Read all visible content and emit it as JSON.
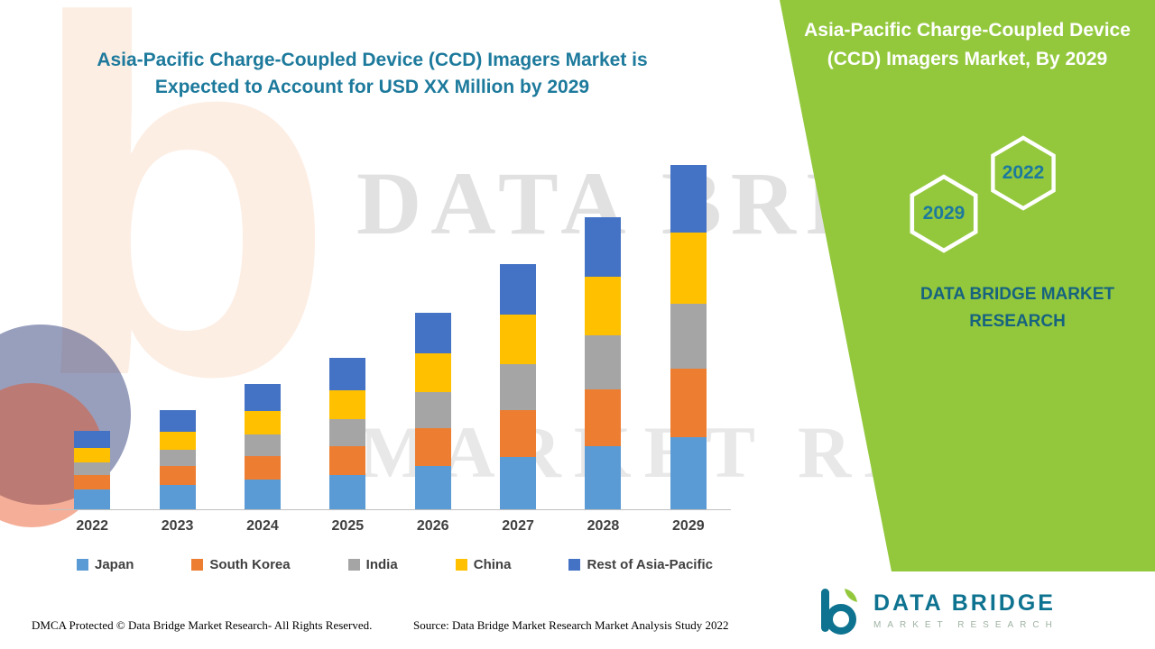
{
  "titles": {
    "main": "Asia-Pacific Charge-Coupled Device (CCD) Imagers Market is Expected to Account for USD XX Million by 2029",
    "panel": "Asia-Pacific Charge-Coupled Device (CCD) Imagers Market, By 2029"
  },
  "panel": {
    "hexagon_left": "2029",
    "hexagon_right": "2022",
    "brand_caption": "DATA BRIDGE MARKET RESEARCH"
  },
  "watermark": {
    "line1": "DATA BRIDGE",
    "line2": "MARKET RESEARCH",
    "letter_b": "b"
  },
  "logo": {
    "brand": "DATA BRIDGE",
    "subtitle": "MARKET RESEARCH"
  },
  "footer": {
    "dmca": "DMCA Protected © Data Bridge Market Research- All Rights Reserved.",
    "source": "Source: Data Bridge Market Research Market Analysis Study 2022"
  },
  "colors": {
    "green": "#93C83D",
    "teal": "#1D7A9C"
  },
  "chart_data": {
    "type": "bar",
    "stacked": true,
    "title": "Asia-Pacific Charge-Coupled Device (CCD) Imagers Market is Expected to Account for USD XX Million by 2029",
    "categories": [
      "2022",
      "2023",
      "2024",
      "2025",
      "2026",
      "2027",
      "2028",
      "2029"
    ],
    "series": [
      {
        "name": "Japan",
        "color": "#5B9BD5",
        "values": [
          22,
          27,
          33,
          38,
          48,
          58,
          70,
          80
        ]
      },
      {
        "name": "South Korea",
        "color": "#ED7D31",
        "values": [
          16,
          21,
          26,
          32,
          42,
          52,
          63,
          76
        ]
      },
      {
        "name": "India",
        "color": "#A5A5A5",
        "values": [
          14,
          18,
          24,
          30,
          40,
          51,
          60,
          72
        ]
      },
      {
        "name": "China",
        "color": "#FFC000",
        "values": [
          16,
          20,
          26,
          32,
          43,
          55,
          65,
          79
        ]
      },
      {
        "name": "Rest of Asia-Pacific",
        "color": "#4472C4",
        "values": [
          19,
          24,
          30,
          36,
          45,
          56,
          66,
          75
        ]
      }
    ],
    "xlabel": "",
    "ylabel": "",
    "ylim": [
      0,
      400
    ],
    "grid": false,
    "legend_position": "bottom",
    "value_labels_shown": false,
    "values_note": "Actual USD values shown as XX in title; series values estimated in relative units from bar heights"
  }
}
